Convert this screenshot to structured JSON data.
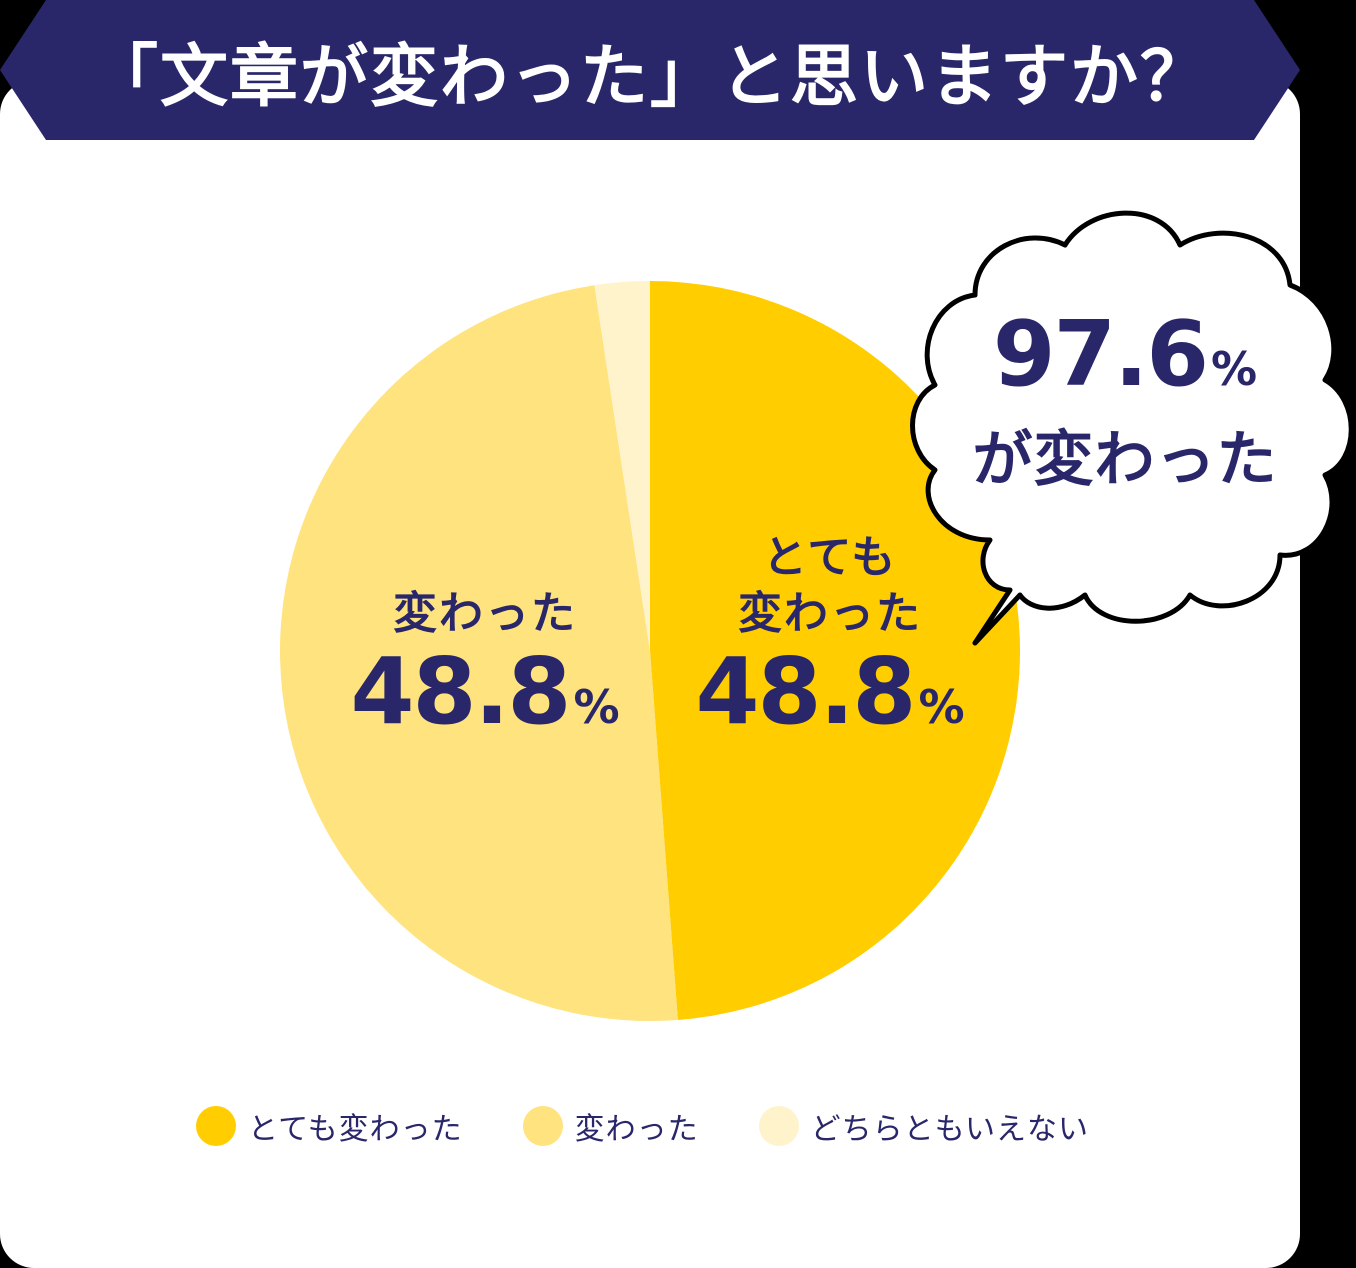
{
  "title": "「文章が変わった」と思いますか？",
  "colors": {
    "navy": "#29276A",
    "very_changed": "#FFCD00",
    "changed": "#FFE37F",
    "neither": "#FFF3CC",
    "card_bg": "#FFFFFF",
    "page_bg": "#000000"
  },
  "slices": [
    {
      "name_line1": "とても",
      "name_line2": "変わった",
      "value": "48.8",
      "unit": "%"
    },
    {
      "name_line1": "",
      "name_line2": "変わった",
      "value": "48.8",
      "unit": "%"
    },
    {
      "name_line1": "",
      "name_line2": "どちらともいえない",
      "value": "2.4",
      "unit": "%"
    }
  ],
  "bubble": {
    "value": "97.6",
    "unit": "%",
    "caption": "が変わった"
  },
  "legend": [
    {
      "label": "とても変わった",
      "color": "#FFCD00"
    },
    {
      "label": "変わった",
      "color": "#FFE37F"
    },
    {
      "label": "どちらともいえない",
      "color": "#FFF3CC"
    }
  ],
  "chart_data": {
    "type": "pie",
    "title": "「文章が変わった」と思いますか？",
    "categories": [
      "とても変わった",
      "変わった",
      "どちらともいえない"
    ],
    "values": [
      48.8,
      48.8,
      2.4
    ],
    "unit": "%",
    "colors": [
      "#FFCD00",
      "#FFE37F",
      "#FFF3CC"
    ],
    "start_angle": "12 o'clock",
    "direction": "clockwise",
    "legend_position": "bottom",
    "annotations": [
      {
        "text": "とても変わった 48.8%",
        "slice": 0
      },
      {
        "text": "変わった 48.8%",
        "slice": 1
      },
      {
        "text": "97.6% が変わった",
        "type": "speech-bubble",
        "note": "sum of とても変わった + 変わった"
      }
    ]
  }
}
